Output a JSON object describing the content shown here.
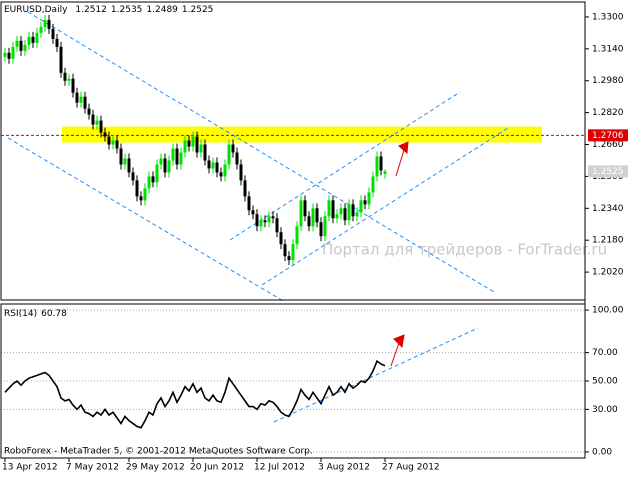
{
  "chart_data": {
    "type": "candlestick",
    "title": "EURUSD,Daily",
    "categories": [
      "13 Apr 2012",
      null,
      null,
      null,
      null,
      null,
      null,
      null,
      null,
      null,
      null,
      null,
      null,
      null,
      null,
      null,
      "7 May 2012",
      null,
      null,
      null,
      null,
      null,
      null,
      null,
      null,
      null,
      null,
      null,
      null,
      null,
      null,
      "29 May 2012",
      null,
      null,
      null,
      null,
      null,
      null,
      null,
      null,
      null,
      null,
      null,
      null,
      null,
      null,
      null,
      "20 Jun 2012",
      null,
      null,
      null,
      null,
      null,
      null,
      null,
      null,
      null,
      null,
      null,
      null,
      null,
      null,
      null,
      "12 Jul 2012",
      null,
      null,
      null,
      null,
      null,
      null,
      null,
      null,
      null,
      null,
      null,
      null,
      null,
      null,
      null,
      "3 Aug 2012",
      null,
      null,
      null,
      null,
      null,
      null,
      null,
      null,
      null,
      null,
      null,
      null,
      null,
      null,
      null,
      "27 Aug 2012"
    ],
    "open": [
      1.31,
      1.312,
      1.309,
      1.315,
      1.318,
      1.313,
      1.316,
      1.32,
      1.317,
      1.322,
      1.325,
      1.3285,
      1.324,
      1.319,
      1.315,
      1.302,
      1.298,
      1.299,
      1.292,
      1.287,
      1.29,
      1.284,
      1.281,
      1.276,
      1.278,
      1.272,
      1.27,
      1.266,
      1.268,
      1.264,
      1.256,
      1.259,
      1.252,
      1.248,
      1.24,
      1.238,
      1.244,
      1.25,
      1.247,
      1.256,
      1.259,
      1.252,
      1.258,
      1.264,
      1.256,
      1.262,
      1.268,
      1.265,
      1.27,
      1.262,
      1.266,
      1.258,
      1.254,
      1.257,
      1.252,
      1.25,
      1.256,
      1.266,
      1.262,
      1.256,
      1.248,
      1.24,
      1.233,
      1.231,
      1.225,
      1.228,
      1.227,
      1.23,
      1.229,
      1.222,
      1.216,
      1.21,
      1.208,
      1.216,
      1.225,
      1.238,
      1.23,
      1.225,
      1.234,
      1.227,
      1.22,
      1.23,
      1.238,
      1.229,
      1.231,
      1.234,
      1.228,
      1.236,
      1.23,
      1.232,
      1.238,
      1.236,
      1.242,
      1.25,
      1.26,
      1.2512
    ],
    "high": [
      1.3145,
      1.3145,
      1.3175,
      1.3205,
      1.3205,
      1.3185,
      1.3225,
      1.3225,
      1.3245,
      1.3275,
      1.331,
      1.331,
      1.3265,
      1.3215,
      1.3175,
      1.3045,
      1.3015,
      1.3015,
      1.2945,
      1.2925,
      1.2925,
      1.2865,
      1.2835,
      1.2805,
      1.2805,
      1.2745,
      1.2725,
      1.2705,
      1.2705,
      1.2665,
      1.2615,
      1.2615,
      1.2545,
      1.2505,
      1.2425,
      1.2465,
      1.2525,
      1.2525,
      1.2585,
      1.2615,
      1.2615,
      1.2605,
      1.2665,
      1.2665,
      1.2645,
      1.2705,
      1.2705,
      1.2725,
      1.2725,
      1.2685,
      1.2685,
      1.2605,
      1.2595,
      1.2595,
      1.2545,
      1.2585,
      1.2685,
      1.2685,
      1.2645,
      1.2585,
      1.2505,
      1.2425,
      1.2355,
      1.2335,
      1.2305,
      1.2305,
      1.2325,
      1.2325,
      1.2315,
      1.2245,
      1.2185,
      1.2125,
      1.2185,
      1.2275,
      1.2405,
      1.2405,
      1.2325,
      1.2365,
      1.2365,
      1.2295,
      1.2325,
      1.2405,
      1.2405,
      1.2335,
      1.2365,
      1.2365,
      1.2385,
      1.2385,
      1.2345,
      1.2405,
      1.2405,
      1.2445,
      1.2525,
      1.2625,
      1.2625,
      1.2535
    ],
    "low": [
      1.3075,
      1.3065,
      1.3065,
      1.3125,
      1.3105,
      1.3105,
      1.3135,
      1.3145,
      1.3145,
      1.3195,
      1.3225,
      1.3215,
      1.3165,
      1.3125,
      1.2995,
      1.2955,
      1.2955,
      1.2895,
      1.2845,
      1.2845,
      1.2815,
      1.2785,
      1.2735,
      1.2735,
      1.2695,
      1.2675,
      1.2635,
      1.2635,
      1.2615,
      1.2535,
      1.2535,
      1.2495,
      1.2455,
      1.2375,
      1.2355,
      1.2355,
      1.2415,
      1.2445,
      1.2445,
      1.2535,
      1.2495,
      1.2495,
      1.2555,
      1.2535,
      1.2535,
      1.2595,
      1.2625,
      1.2625,
      1.2595,
      1.2595,
      1.2555,
      1.2515,
      1.2515,
      1.2495,
      1.2475,
      1.2475,
      1.2535,
      1.2595,
      1.2535,
      1.2455,
      1.2375,
      1.2305,
      1.2285,
      1.2225,
      1.2225,
      1.2245,
      1.2245,
      1.2265,
      1.2195,
      1.2135,
      1.2075,
      1.2055,
      1.2055,
      1.2135,
      1.2225,
      1.2275,
      1.2225,
      1.2225,
      1.2245,
      1.2175,
      1.2175,
      1.2275,
      1.2265,
      1.2265,
      1.2285,
      1.2255,
      1.2255,
      1.2275,
      1.2275,
      1.2295,
      1.2335,
      1.2335,
      1.2395,
      1.2475,
      1.2505,
      1.2489
    ],
    "close": [
      1.312,
      1.309,
      1.315,
      1.318,
      1.313,
      1.316,
      1.32,
      1.317,
      1.322,
      1.325,
      1.3285,
      1.324,
      1.319,
      1.315,
      1.302,
      1.298,
      1.299,
      1.292,
      1.287,
      1.29,
      1.284,
      1.281,
      1.276,
      1.278,
      1.272,
      1.27,
      1.266,
      1.268,
      1.264,
      1.256,
      1.259,
      1.252,
      1.248,
      1.24,
      1.238,
      1.244,
      1.25,
      1.247,
      1.256,
      1.259,
      1.252,
      1.258,
      1.264,
      1.256,
      1.262,
      1.268,
      1.265,
      1.27,
      1.262,
      1.266,
      1.258,
      1.254,
      1.257,
      1.252,
      1.25,
      1.256,
      1.266,
      1.262,
      1.256,
      1.248,
      1.24,
      1.233,
      1.231,
      1.225,
      1.228,
      1.227,
      1.23,
      1.229,
      1.222,
      1.216,
      1.21,
      1.208,
      1.216,
      1.225,
      1.238,
      1.23,
      1.225,
      1.234,
      1.227,
      1.22,
      1.23,
      1.238,
      1.229,
      1.231,
      1.234,
      1.228,
      1.236,
      1.23,
      1.232,
      1.238,
      1.236,
      1.242,
      1.25,
      1.26,
      1.253,
      1.2525
    ],
    "up_color": "#00e000",
    "down_color": "#000000",
    "ylim": [
      1.188,
      1.3375
    ],
    "yticks": [
      {
        "value": 1.33,
        "label": "1.3300"
      },
      {
        "value": 1.314,
        "label": "1.3140"
      },
      {
        "value": 1.298,
        "label": "1.2980"
      },
      {
        "value": 1.282,
        "label": "1.2820"
      },
      {
        "value": 1.266,
        "label": "1.2660"
      },
      {
        "value": 1.25,
        "label": "1.2500"
      },
      {
        "value": 1.234,
        "label": "1.2340"
      },
      {
        "value": 1.218,
        "label": "1.2180"
      },
      {
        "value": 1.202,
        "label": "1.2020"
      }
    ],
    "level": 1.2706,
    "level_color": "#e00000",
    "zone": [
      1.267,
      1.275
    ],
    "zone_color": "#ffff00",
    "watermark": "Портал для трейдеров - ForTrader.ru",
    "copyright": "RoboForex - MetaTrader 5, © 2001-2012 MetaQuotes Software Corp.",
    "rsi": {
      "title": "RSI(14)",
      "color": "#000000",
      "values": [
        42,
        45,
        48,
        50,
        47,
        50,
        52,
        53,
        54,
        55,
        56,
        54,
        50,
        46,
        38,
        36,
        37,
        33,
        30,
        33,
        28,
        27,
        25,
        28,
        26,
        30,
        26,
        28,
        24,
        20,
        25,
        22,
        20,
        18,
        17,
        22,
        28,
        26,
        34,
        38,
        32,
        36,
        42,
        35,
        40,
        46,
        43,
        48,
        42,
        45,
        38,
        36,
        40,
        36,
        35,
        42,
        52,
        48,
        44,
        40,
        36,
        32,
        32,
        30,
        34,
        33,
        36,
        35,
        32,
        28,
        26,
        25,
        30,
        36,
        44,
        40,
        37,
        42,
        38,
        34,
        40,
        46,
        40,
        42,
        46,
        42,
        48,
        45,
        47,
        50,
        49,
        52,
        57,
        64,
        62,
        60.78
      ],
      "ylim": [
        -4.3,
        104.3
      ],
      "yticks": [
        {
          "value": 100,
          "label": "100.00"
        },
        {
          "value": 70,
          "label": "70.00"
        },
        {
          "value": 50,
          "label": "50.00"
        },
        {
          "value": 30,
          "label": "30.00"
        },
        {
          "value": 0,
          "label": "0.00"
        }
      ]
    }
  }
}
